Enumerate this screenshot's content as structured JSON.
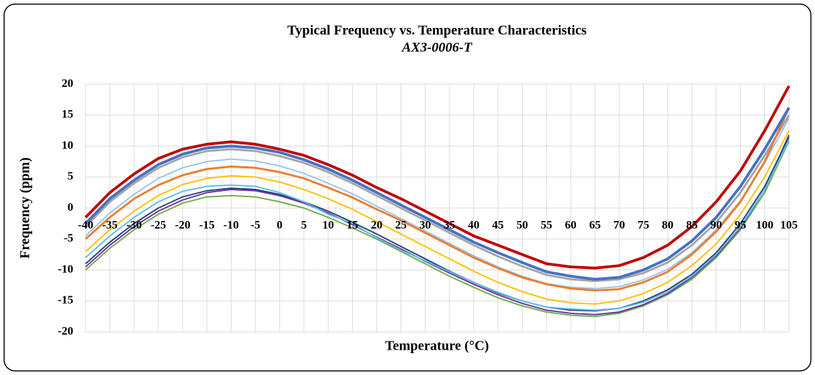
{
  "chart_data": {
    "type": "line",
    "title": "Typical Frequency vs. Temperature Characteristics",
    "subtitle": "AX3-0006-T",
    "x_label": "Temperature (°C)",
    "y_label": "Frequency (ppm)",
    "x": [
      -40,
      -35,
      -30,
      -25,
      -20,
      -15,
      -10,
      -5,
      0,
      5,
      10,
      15,
      20,
      25,
      30,
      35,
      40,
      45,
      50,
      55,
      60,
      65,
      70,
      75,
      80,
      85,
      90,
      95,
      100,
      105
    ],
    "xlim": [
      -40,
      105
    ],
    "xticks": [
      -40,
      -35,
      -30,
      -25,
      -20,
      -15,
      -10,
      -5,
      0,
      5,
      10,
      15,
      20,
      25,
      30,
      35,
      40,
      45,
      50,
      55,
      60,
      65,
      70,
      75,
      80,
      85,
      90,
      95,
      100,
      105
    ],
    "ylim": [
      -20,
      20
    ],
    "yticks": [
      -20,
      -15,
      -10,
      -5,
      0,
      5,
      10,
      15,
      20
    ],
    "grid": true,
    "series": [
      {
        "color": "#70ad47",
        "width": 2,
        "values": [
          -10,
          -6.5,
          -3.5,
          -1,
          0.8,
          1.8,
          2,
          1.8,
          1,
          0,
          -1.5,
          -3.2,
          -5,
          -7,
          -9,
          -11,
          -12.8,
          -14.5,
          -15.8,
          -16.8,
          -17.3,
          -17.5,
          -17,
          -15.8,
          -14,
          -11.5,
          -8,
          -3.5,
          2.5,
          10.8
        ]
      },
      {
        "color": "#7030a0",
        "width": 2,
        "values": [
          -9.5,
          -6,
          -3,
          -0.5,
          1.3,
          2.5,
          3,
          2.8,
          2,
          0.8,
          -0.8,
          -2.7,
          -4.7,
          -6.6,
          -8.6,
          -10.5,
          -12.3,
          -14,
          -15.4,
          -16.5,
          -17,
          -17.2,
          -16.8,
          -15.6,
          -13.8,
          -11.2,
          -7.7,
          -3.2,
          3,
          11.8
        ]
      },
      {
        "color": "#264478",
        "width": 2,
        "values": [
          -9,
          -5.5,
          -2.5,
          0,
          1.8,
          2.8,
          3.2,
          3,
          2.2,
          1,
          -0.5,
          -2.3,
          -4.2,
          -6.2,
          -8.2,
          -10.2,
          -12,
          -13.7,
          -15,
          -16,
          -16.5,
          -16.6,
          -16.2,
          -15,
          -13.2,
          -10.7,
          -7.2,
          -2.5,
          3.5,
          11.5
        ]
      },
      {
        "color": "#5bc0eb",
        "width": 2,
        "values": [
          -8,
          -4.5,
          -1.5,
          1,
          2.7,
          3.5,
          3.7,
          3.5,
          2.5,
          1,
          -1,
          -2.5,
          -4.8,
          -6.8,
          -8.5,
          -10.3,
          -12,
          -13.6,
          -15,
          -16,
          -16.3,
          -16.5,
          -16.2,
          -15.2,
          -13.5,
          -11,
          -7.5,
          -3,
          3,
          11
        ]
      },
      {
        "color": "#ffc000",
        "width": 2,
        "values": [
          -7,
          -3.5,
          -0.5,
          2,
          3.8,
          4.8,
          5.2,
          5,
          4.2,
          3,
          1.5,
          -0.2,
          -2.2,
          -4.2,
          -6.2,
          -8.2,
          -10.2,
          -12,
          -13.5,
          -14.7,
          -15.3,
          -15.5,
          -15,
          -13.8,
          -12,
          -9.3,
          -5.8,
          -1,
          5,
          12.5
        ]
      },
      {
        "color": "#9dc3e6",
        "width": 2,
        "values": [
          -4.5,
          -0.8,
          2.2,
          4.8,
          6.5,
          7.5,
          7.9,
          7.6,
          6.8,
          5.6,
          4,
          2.3,
          0.3,
          -1.7,
          -3.7,
          -5.7,
          -7.7,
          -9.5,
          -11,
          -12.2,
          -12.8,
          -13,
          -12.7,
          -11.6,
          -9.9,
          -7.2,
          -3.5,
          1.2,
          7.3,
          14.5
        ]
      },
      {
        "color": "#a5a5a5",
        "width": 3,
        "values": [
          -3,
          1,
          4,
          6.5,
          8.2,
          9.2,
          9.5,
          9.2,
          8.4,
          7.3,
          5.8,
          4,
          2,
          0,
          -2,
          -4,
          -6,
          -7.8,
          -9.4,
          -10.8,
          -11.5,
          -11.8,
          -11.5,
          -10.5,
          -8.8,
          -6,
          -2.3,
          2.5,
          8.5,
          15
        ]
      },
      {
        "color": "#ed7d31",
        "width": 3,
        "values": [
          -5,
          -1.5,
          1.5,
          3.7,
          5.3,
          6.3,
          6.7,
          6.5,
          5.8,
          4.8,
          3.3,
          1.7,
          -0.2,
          -2,
          -4,
          -6,
          -8,
          -9.7,
          -11.2,
          -12.3,
          -13,
          -13.3,
          -13.1,
          -12,
          -10.3,
          -7.5,
          -3.8,
          1,
          7.5,
          16.2
        ]
      },
      {
        "color": "#4472c4",
        "width": 4,
        "values": [
          -2.5,
          1.5,
          4.5,
          7,
          8.7,
          9.7,
          10,
          9.7,
          9,
          7.8,
          6.3,
          4.5,
          2.5,
          0.5,
          -1.5,
          -3.5,
          -5.5,
          -7.2,
          -8.8,
          -10.3,
          -11,
          -11.5,
          -11.2,
          -10,
          -8.2,
          -5.3,
          -1.5,
          3.5,
          9.5,
          16.2
        ]
      },
      {
        "color": "#c00000",
        "width": 4,
        "values": [
          -1.5,
          2.5,
          5.5,
          8,
          9.5,
          10.3,
          10.7,
          10.3,
          9.5,
          8.5,
          7,
          5.3,
          3.3,
          1.5,
          -0.5,
          -2.5,
          -4.5,
          -6,
          -7.5,
          -9,
          -9.5,
          -9.7,
          -9.3,
          -8,
          -6,
          -3,
          1,
          6,
          12.5,
          19.7
        ]
      }
    ]
  }
}
